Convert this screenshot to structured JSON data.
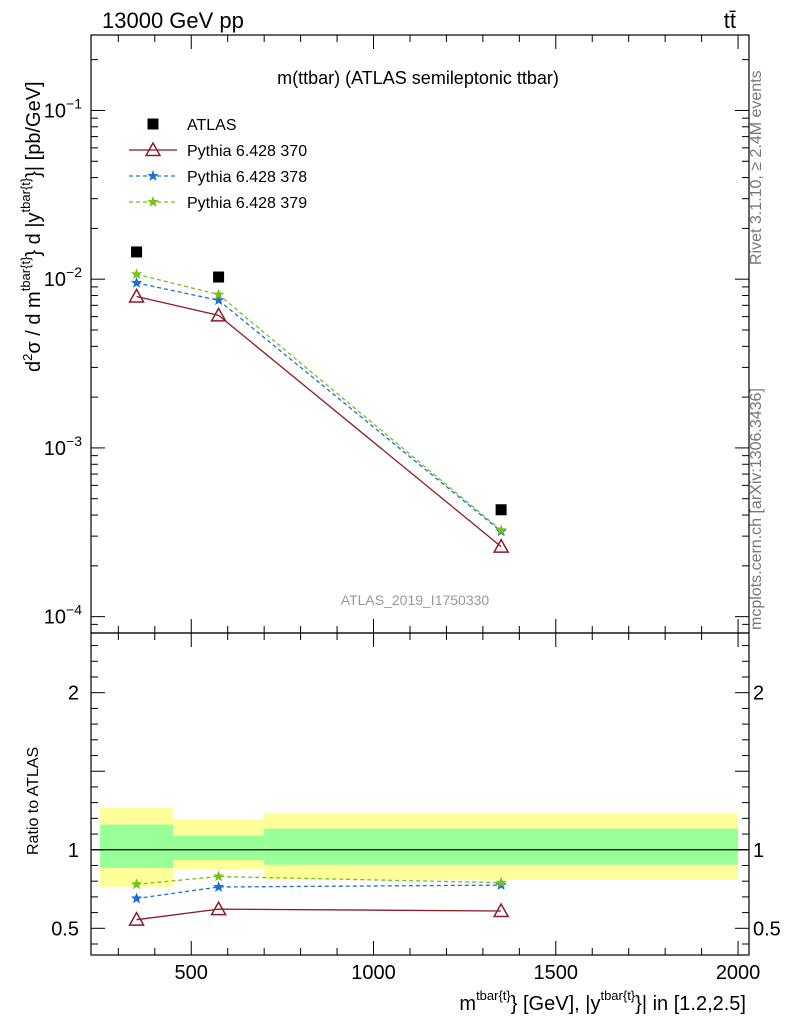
{
  "header": {
    "left": "13000 GeV pp",
    "right": "tt̄"
  },
  "side": {
    "rivet": "Rivet 3.1.10, ≥ 2.4M events",
    "mcplots": "mcplots.cern.ch [arXiv:1306.3436]"
  },
  "chart_data": [
    {
      "type": "scatter",
      "title": "m(ttbar) (ATLAS semileptonic ttbar)",
      "ylabel": "d²σ / d m^{tbar{t}} d |y^{tbar{t}}| [pb/GeV]",
      "yscale": "log",
      "ylim": [
        8e-05,
        0.28
      ],
      "xlim": [
        225,
        2030
      ],
      "yticks": [
        {
          "v": 0.1,
          "b": "10",
          "e": "−1"
        },
        {
          "v": 0.01,
          "b": "10",
          "e": "−2"
        },
        {
          "v": 0.001,
          "b": "10",
          "e": "−3"
        },
        {
          "v": 0.0001,
          "b": "10",
          "e": "−4"
        }
      ],
      "watermark": "ATLAS_2019_I1750330",
      "legend_position": "top-left",
      "series": [
        {
          "name": "ATLAS",
          "color": "#000000",
          "marker": "square",
          "x": [
            350,
            575,
            1350
          ],
          "y": [
            0.0145,
            0.0103,
            0.00043
          ]
        },
        {
          "name": "Pythia 6.428 370",
          "color": "#8b1a2b",
          "marker": "triangle",
          "dash": "",
          "x": [
            350,
            575,
            1350
          ],
          "y": [
            0.0079,
            0.0061,
            0.00026
          ]
        },
        {
          "name": "Pythia 6.428 378",
          "color": "#1b6fd6",
          "marker": "star",
          "dash": "4,3",
          "x": [
            350,
            575,
            1350
          ],
          "y": [
            0.0095,
            0.0075,
            0.00032
          ]
        },
        {
          "name": "Pythia 6.428 379",
          "color": "#77c11b",
          "marker": "star",
          "dash": "4,3",
          "x": [
            350,
            575,
            1350
          ],
          "y": [
            0.0107,
            0.0081,
            0.000325
          ]
        }
      ]
    },
    {
      "type": "line",
      "ylabel": "Ratio to ATLAS",
      "xlabel": "m^{tbar{t}} [GeV], |y^{tbar{t}}| in [1.2,2.5]",
      "ylim": [
        0.33,
        2.38
      ],
      "xlim": [
        225,
        2030
      ],
      "xticks": [
        "500",
        "1000",
        "1500",
        "2000"
      ],
      "xtick_values": [
        500,
        1000,
        1500,
        2000
      ],
      "yticks": [
        "0.5",
        "1",
        "2"
      ],
      "ytick_values": [
        0.5,
        1,
        2
      ],
      "bands": [
        {
          "x0": 250,
          "x1": 450,
          "inner": [
            0.885,
            1.16
          ],
          "outer": [
            0.765,
            1.265
          ]
        },
        {
          "x0": 450,
          "x1": 700,
          "inner": [
            0.935,
            1.09
          ],
          "outer": [
            0.875,
            1.195
          ]
        },
        {
          "x0": 700,
          "x1": 2000,
          "inner": [
            0.905,
            1.135
          ],
          "outer": [
            0.81,
            1.235
          ]
        }
      ],
      "band_colors": {
        "inner": "#99ff99",
        "outer": "#ffff99"
      },
      "series": [
        {
          "name": "Pythia 6.428 370",
          "color": "#8b1a2b",
          "marker": "triangle",
          "dash": "",
          "x": [
            350,
            575,
            1350
          ],
          "y": [
            0.555,
            0.622,
            0.61
          ]
        },
        {
          "name": "Pythia 6.428 378",
          "color": "#1b6fd6",
          "marker": "star",
          "dash": "4,3",
          "x": [
            350,
            575,
            1350
          ],
          "y": [
            0.69,
            0.763,
            0.775
          ]
        },
        {
          "name": "Pythia 6.428 379",
          "color": "#77c11b",
          "marker": "star",
          "dash": "4,3",
          "x": [
            350,
            575,
            1350
          ],
          "y": [
            0.78,
            0.83,
            0.79
          ]
        }
      ]
    }
  ]
}
